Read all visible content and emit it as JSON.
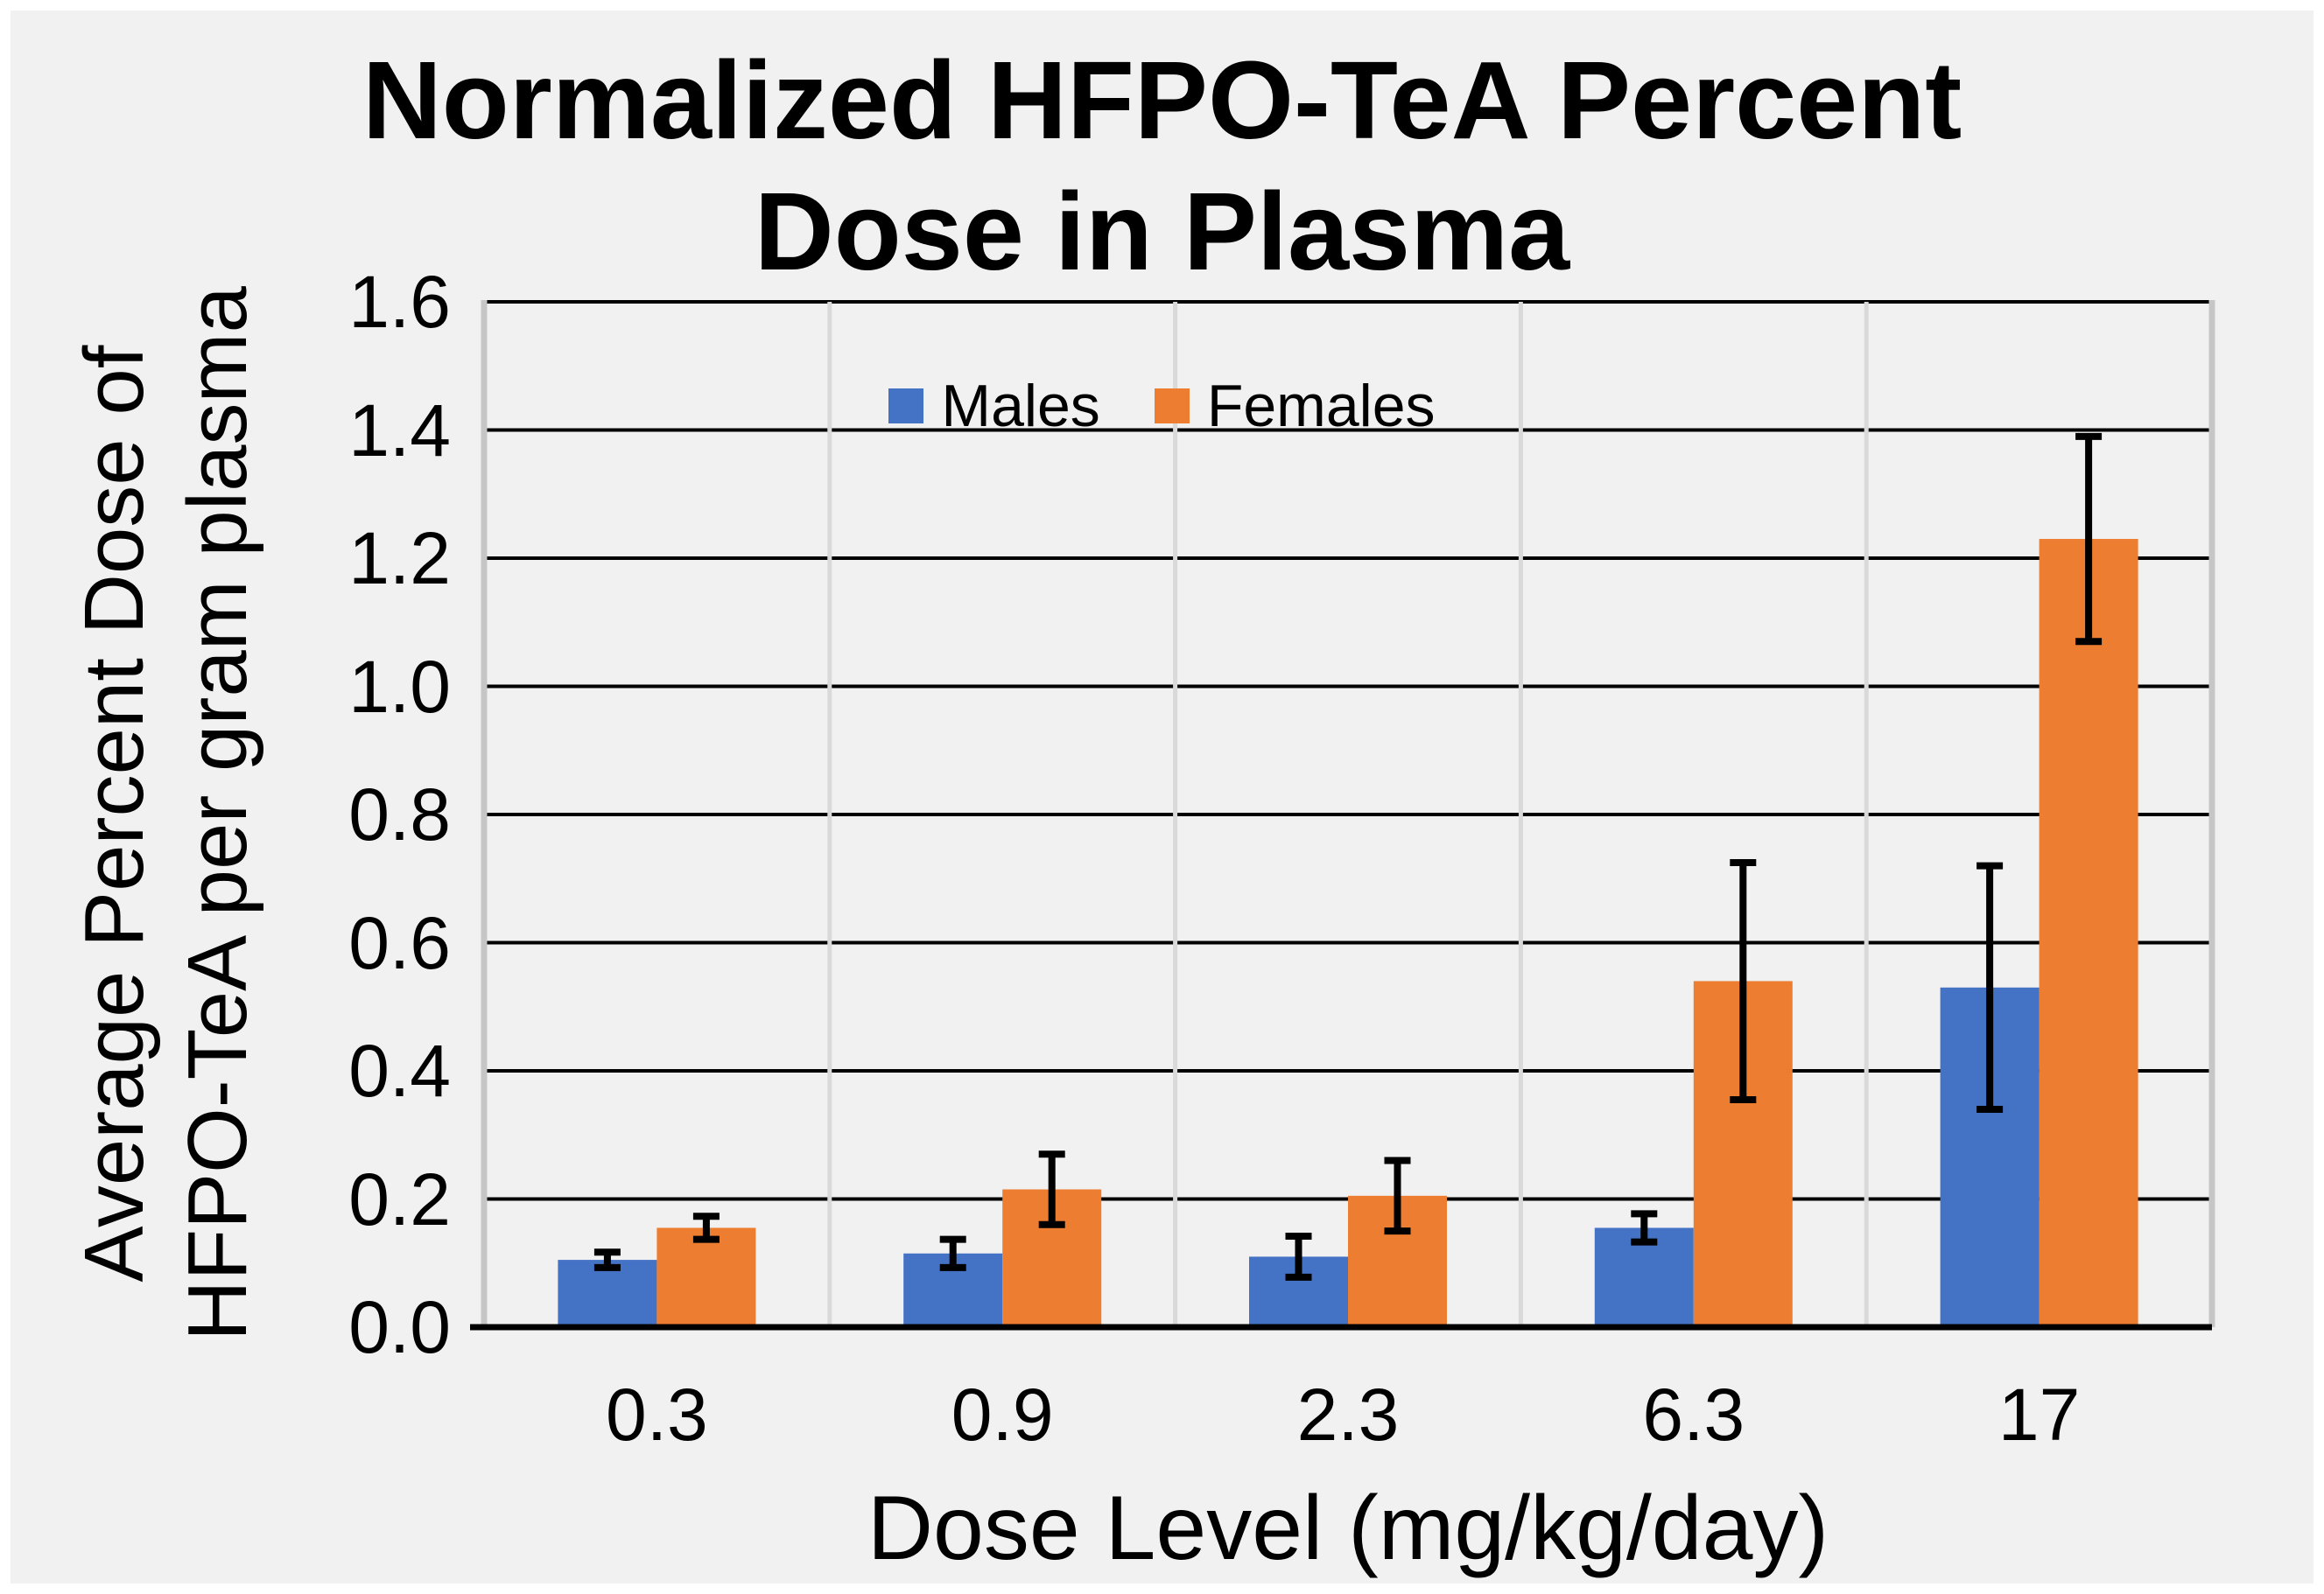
{
  "chart": {
    "title_line1": "Normalized HFPO-TeA Percent",
    "title_line2": "Dose in Plasma"
  },
  "chart_data": {
    "type": "bar",
    "title": "Normalized HFPO-TeA Percent Dose in Plasma",
    "categories": [
      "0.3",
      "0.9",
      "2.3",
      "6.3",
      "17"
    ],
    "series": [
      {
        "name": "Males",
        "color": "#4472C4",
        "values": [
          0.105,
          0.115,
          0.11,
          0.155,
          0.53
        ],
        "error_bars": [
          0.012,
          0.022,
          0.032,
          0.022,
          0.19
        ]
      },
      {
        "name": "Females",
        "color": "#ED7D31",
        "values": [
          0.155,
          0.215,
          0.205,
          0.54,
          1.23
        ],
        "error_bars": [
          0.018,
          0.055,
          0.055,
          0.185,
          0.16
        ]
      }
    ],
    "xlabel": "Dose Level (mg/kg/day)",
    "ylabel_lines": [
      "Average Percent Dose of",
      "HFPO-TeA per gram plasma"
    ],
    "ylim": [
      0,
      1.6
    ],
    "ytick_step": 0.2,
    "ytick_decimals": 1,
    "legend_position": "top-center",
    "grid": {
      "horizontal": "black",
      "vertical": "light-gray"
    }
  },
  "style_colors": {
    "male_blue": "#4472C4",
    "female_orange": "#ED7D31",
    "chart_background": "#F1F1F1",
    "page_background": "#FFFFFF",
    "horizontal_gridline": "#000000",
    "vertical_gridline": "#D9D9D9",
    "axis_line": "#C6C6C6",
    "error_bar": "#000000",
    "text": "#000000"
  }
}
